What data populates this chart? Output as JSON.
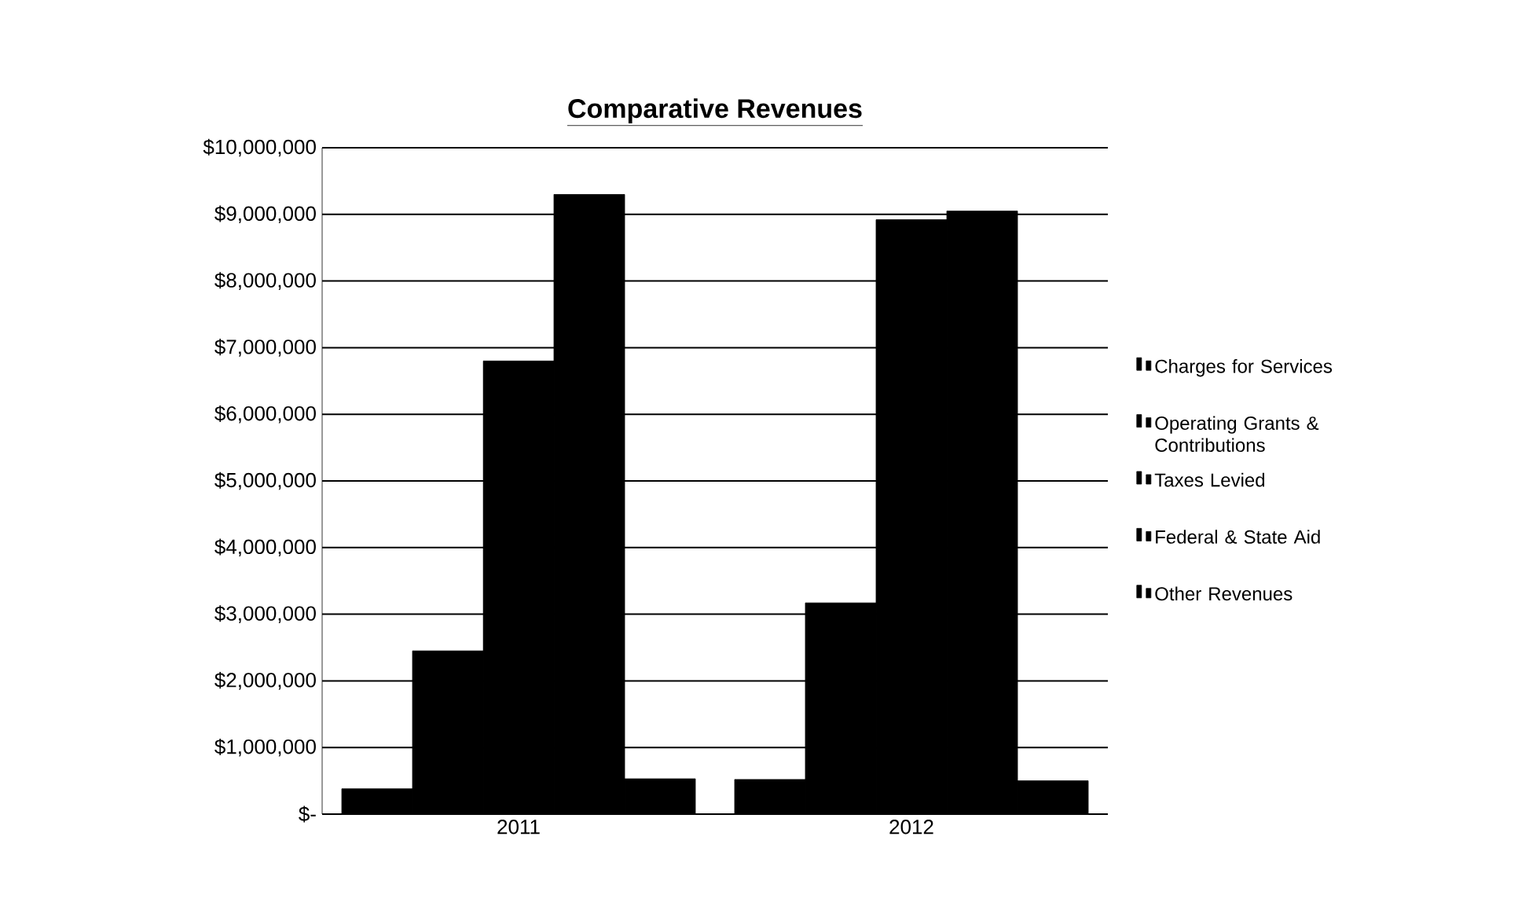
{
  "chart_data": {
    "type": "bar",
    "title": "Comparative Revenues",
    "categories": [
      "2011",
      "2012"
    ],
    "series": [
      {
        "name": "Charges for Services",
        "color": "#000000",
        "values": [
          380000,
          520000
        ]
      },
      {
        "name": "Operating Grants & Contributions",
        "color": "#000000",
        "values": [
          2450000,
          3170000
        ]
      },
      {
        "name": "Taxes Levied",
        "color": "#000000",
        "values": [
          6800000,
          8920000
        ]
      },
      {
        "name": "Federal & State Aid",
        "color": "#000000",
        "values": [
          9300000,
          9050000
        ]
      },
      {
        "name": "Other Revenues",
        "color": "#000000",
        "values": [
          530000,
          500000
        ]
      }
    ],
    "ylim": [
      0,
      10000000
    ],
    "yticks": [
      {
        "value": 0,
        "label": "$-"
      },
      {
        "value": 1000000,
        "label": "$1,000,000"
      },
      {
        "value": 2000000,
        "label": "$2,000,000"
      },
      {
        "value": 3000000,
        "label": "$3,000,000"
      },
      {
        "value": 4000000,
        "label": "$4,000,000"
      },
      {
        "value": 5000000,
        "label": "$5,000,000"
      },
      {
        "value": 6000000,
        "label": "$6,000,000"
      },
      {
        "value": 7000000,
        "label": "$7,000,000"
      },
      {
        "value": 8000000,
        "label": "$8,000,000"
      },
      {
        "value": 9000000,
        "label": "$9,000,000"
      },
      {
        "value": 10000000,
        "label": "$10,000,000"
      }
    ],
    "grid": "y",
    "legend": "right"
  }
}
